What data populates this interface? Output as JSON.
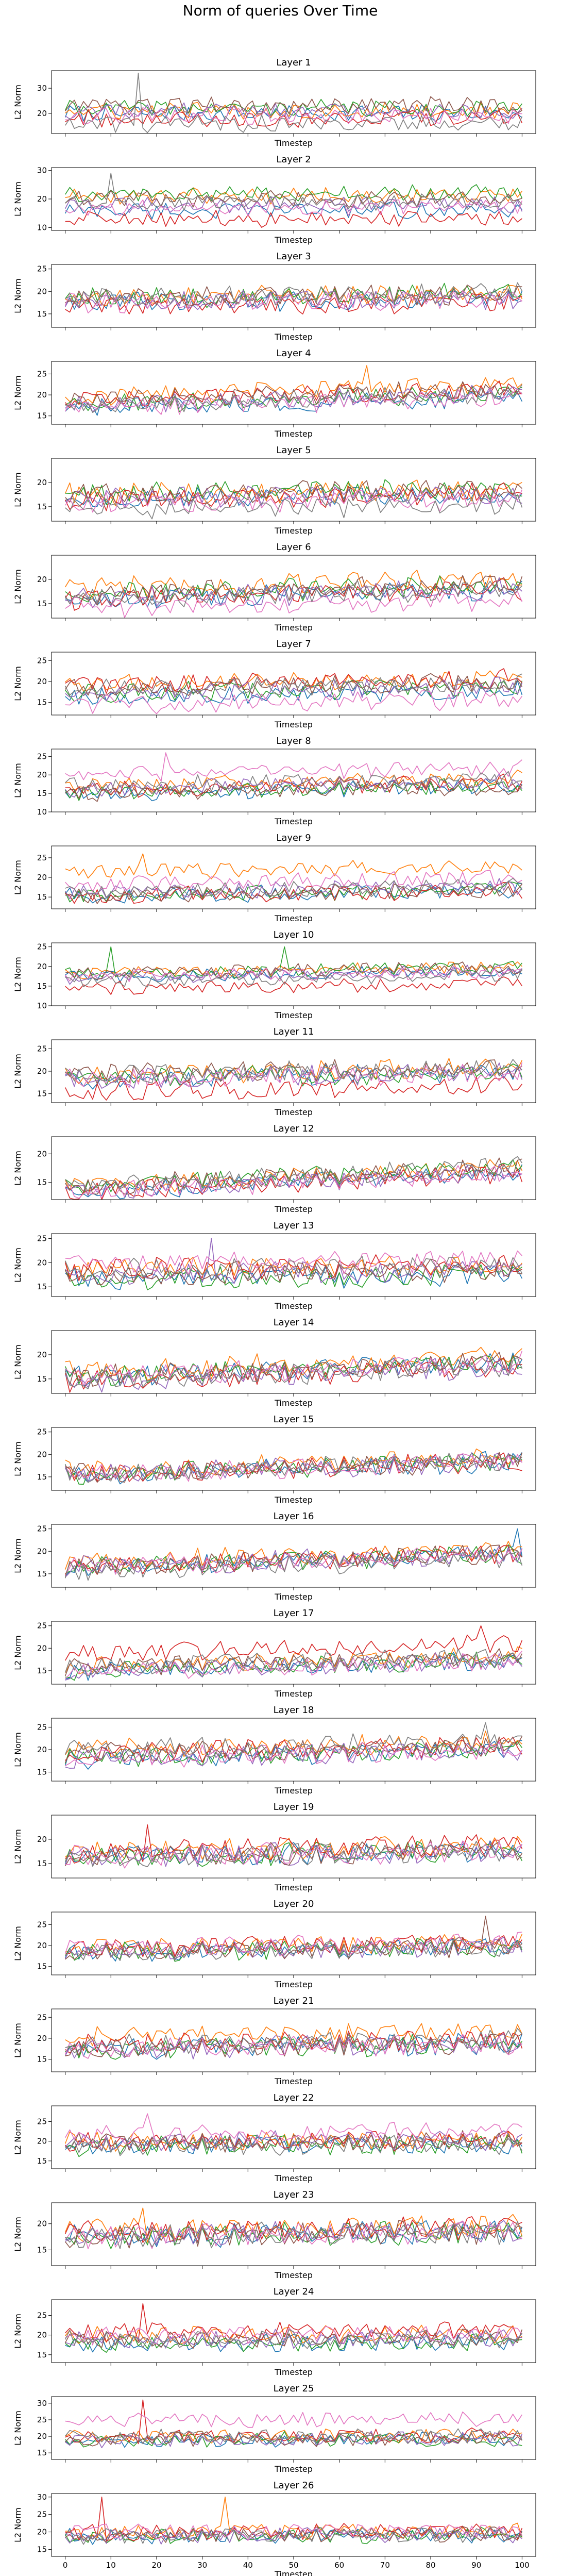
{
  "figure": {
    "suptitle": "Norm of queries Over Time",
    "ylabel": "L2 Norm",
    "xlabel": "Timestep"
  },
  "chart_data": {
    "type": "line",
    "title": "Norm of queries Over Time",
    "xlim": [
      -3,
      103
    ],
    "x_ticks": [
      0,
      10,
      20,
      30,
      40,
      50,
      60,
      70,
      80,
      90,
      100
    ],
    "series_count": 8,
    "series_colors": [
      "#1f77b4",
      "#ff7f0e",
      "#2ca02c",
      "#d62728",
      "#9467bd",
      "#8c564b",
      "#e377c2",
      "#7f7f7f"
    ],
    "note_values": "values per series are approximate, read from the figure; each line holds 101 timesteps (0–100)",
    "panels": [
      {
        "title": "Layer 1",
        "ylim": [
          12,
          37
        ],
        "yticks": [
          20,
          30
        ],
        "means": [
          20,
          21,
          22,
          18,
          21,
          23,
          19,
          16
        ],
        "amp": 3.0,
        "trend": 0.0,
        "spikes": [
          {
            "s": 7,
            "x": 16,
            "v": 36
          }
        ]
      },
      {
        "title": "Layer 2",
        "ylim": [
          9,
          31
        ],
        "yticks": [
          10,
          20,
          30
        ],
        "means": [
          16,
          21,
          22,
          13,
          18,
          20,
          17,
          19
        ],
        "amp": 2.5,
        "trend": 0.0,
        "spikes": [
          {
            "s": 7,
            "x": 10,
            "v": 29
          }
        ]
      },
      {
        "title": "Layer 3",
        "ylim": [
          12,
          26
        ],
        "yticks": [
          15,
          20,
          25
        ],
        "means": [
          18,
          19,
          19,
          17,
          18,
          19,
          18,
          19
        ],
        "amp": 2.0,
        "trend": 1.0,
        "spikes": []
      },
      {
        "title": "Layer 4",
        "ylim": [
          13,
          28
        ],
        "yticks": [
          15,
          20,
          25
        ],
        "means": [
          18,
          21,
          19,
          20,
          19,
          20,
          18,
          19
        ],
        "amp": 2.0,
        "trend": 3.0,
        "spikes": [
          {
            "s": 1,
            "x": 66,
            "v": 27
          }
        ]
      },
      {
        "title": "Layer 5",
        "ylim": [
          12,
          25
        ],
        "yticks": [
          15,
          20
        ],
        "means": [
          17,
          18,
          18,
          17,
          17,
          18,
          16,
          15
        ],
        "amp": 2.0,
        "trend": 1.0,
        "spikes": []
      },
      {
        "title": "Layer 6",
        "ylim": [
          12,
          25
        ],
        "yticks": [
          15,
          20
        ],
        "means": [
          17,
          19,
          18,
          17,
          17,
          18,
          15,
          17
        ],
        "amp": 2.0,
        "trend": 2.0,
        "spikes": []
      },
      {
        "title": "Layer 7",
        "ylim": [
          12,
          27
        ],
        "yticks": [
          15,
          20,
          25
        ],
        "means": [
          17,
          20,
          18,
          20,
          18,
          19,
          15,
          19
        ],
        "amp": 2.0,
        "trend": 1.5,
        "spikes": []
      },
      {
        "title": "Layer 8",
        "ylim": [
          10,
          27
        ],
        "yticks": [
          10,
          15,
          20,
          25
        ],
        "means": [
          16,
          18,
          16,
          17,
          17,
          16,
          21,
          18
        ],
        "amp": 2.0,
        "trend": 2.0,
        "spikes": [
          {
            "s": 6,
            "x": 22,
            "v": 26
          }
        ]
      },
      {
        "title": "Layer 9",
        "ylim": [
          12,
          28
        ],
        "yticks": [
          15,
          20,
          25
        ],
        "means": [
          16,
          22,
          16,
          16,
          17,
          16,
          19,
          17
        ],
        "amp": 1.8,
        "trend": 1.5,
        "spikes": [
          {
            "s": 1,
            "x": 17,
            "v": 26
          }
        ]
      },
      {
        "title": "Layer 10",
        "ylim": [
          10,
          26
        ],
        "yticks": [
          10,
          15,
          20,
          25
        ],
        "means": [
          18,
          19,
          19,
          15,
          18,
          19,
          18,
          17
        ],
        "amp": 1.5,
        "trend": 1.5,
        "spikes": [
          {
            "s": 2,
            "x": 10,
            "v": 25
          },
          {
            "s": 2,
            "x": 48,
            "v": 25
          }
        ]
      },
      {
        "title": "Layer 11",
        "ylim": [
          13,
          27
        ],
        "yticks": [
          15,
          20,
          25
        ],
        "means": [
          19,
          20,
          19,
          16,
          19,
          20,
          19,
          20
        ],
        "amp": 2.0,
        "trend": 1.5,
        "spikes": []
      },
      {
        "title": "Layer 12",
        "ylim": [
          12,
          23
        ],
        "yticks": [
          15,
          20
        ],
        "means": [
          15,
          16,
          16,
          15,
          15,
          16,
          15,
          16
        ],
        "amp": 1.5,
        "trend": 3.5,
        "spikes": []
      },
      {
        "title": "Layer 13",
        "ylim": [
          13,
          26
        ],
        "yticks": [
          15,
          20,
          25
        ],
        "means": [
          17,
          19,
          17,
          19,
          18,
          18,
          20,
          19
        ],
        "amp": 2.0,
        "trend": 1.0,
        "spikes": [
          {
            "s": 4,
            "x": 32,
            "v": 25
          }
        ]
      },
      {
        "title": "Layer 14",
        "ylim": [
          12,
          25
        ],
        "yticks": [
          15,
          20
        ],
        "means": [
          17,
          18,
          17,
          16,
          16,
          17,
          17,
          16
        ],
        "amp": 2.0,
        "trend": 3.0,
        "spikes": []
      },
      {
        "title": "Layer 15",
        "ylim": [
          12,
          26
        ],
        "yticks": [
          15,
          20,
          25
        ],
        "means": [
          17,
          18,
          17,
          17,
          17,
          17,
          17,
          17
        ],
        "amp": 2.0,
        "trend": 3.0,
        "spikes": []
      },
      {
        "title": "Layer 16",
        "ylim": [
          12,
          26
        ],
        "yticks": [
          15,
          20,
          25
        ],
        "means": [
          18,
          19,
          18,
          18,
          18,
          18,
          18,
          17
        ],
        "amp": 2.0,
        "trend": 3.0,
        "spikes": [
          {
            "s": 0,
            "x": 99,
            "v": 25
          }
        ]
      },
      {
        "title": "Layer 17",
        "ylim": [
          12,
          26
        ],
        "yticks": [
          15,
          20,
          25
        ],
        "means": [
          16,
          17,
          16,
          20,
          16,
          17,
          16,
          17
        ],
        "amp": 1.8,
        "trend": 2.5,
        "spikes": [
          {
            "s": 3,
            "x": 91,
            "v": 25
          }
        ]
      },
      {
        "title": "Layer 18",
        "ylim": [
          13,
          27
        ],
        "yticks": [
          15,
          20,
          25
        ],
        "means": [
          19,
          21,
          19,
          20,
          19,
          20,
          19,
          21
        ],
        "amp": 2.0,
        "trend": 2.0,
        "spikes": [
          {
            "s": 7,
            "x": 92,
            "v": 26
          }
        ]
      },
      {
        "title": "Layer 19",
        "ylim": [
          12,
          25
        ],
        "yticks": [
          15,
          20
        ],
        "means": [
          17,
          18,
          17,
          18,
          17,
          17,
          17,
          17
        ],
        "amp": 2.0,
        "trend": 1.5,
        "spikes": [
          {
            "s": 3,
            "x": 18,
            "v": 23
          }
        ]
      },
      {
        "title": "Layer 20",
        "ylim": [
          13,
          28
        ],
        "yticks": [
          15,
          20,
          25
        ],
        "means": [
          19,
          20,
          19,
          20,
          19,
          19,
          20,
          19
        ],
        "amp": 2.0,
        "trend": 1.5,
        "spikes": [
          {
            "s": 5,
            "x": 92,
            "v": 27
          }
        ]
      },
      {
        "title": "Layer 21",
        "ylim": [
          12,
          27
        ],
        "yticks": [
          15,
          20,
          25
        ],
        "means": [
          18,
          21,
          18,
          19,
          18,
          18,
          18,
          19
        ],
        "amp": 2.2,
        "trend": 1.5,
        "spikes": []
      },
      {
        "title": "Layer 22",
        "ylim": [
          13,
          29
        ],
        "yticks": [
          15,
          20,
          25
        ],
        "means": [
          19,
          20,
          19,
          20,
          20,
          20,
          22,
          19
        ],
        "amp": 2.2,
        "trend": 0.5,
        "spikes": [
          {
            "s": 6,
            "x": 18,
            "v": 27
          }
        ]
      },
      {
        "title": "Layer 23",
        "ylim": [
          12,
          24
        ],
        "yticks": [
          15,
          20
        ],
        "means": [
          18,
          19,
          18,
          19,
          18,
          18,
          18,
          18
        ],
        "amp": 2.0,
        "trend": 1.0,
        "spikes": [
          {
            "s": 1,
            "x": 17,
            "v": 23
          }
        ]
      },
      {
        "title": "Layer 24",
        "ylim": [
          13,
          29
        ],
        "yticks": [
          15,
          20,
          25
        ],
        "means": [
          18,
          20,
          18,
          21,
          19,
          19,
          20,
          19
        ],
        "amp": 2.0,
        "trend": 0.5,
        "spikes": [
          {
            "s": 3,
            "x": 17,
            "v": 28
          }
        ]
      },
      {
        "title": "Layer 25",
        "ylim": [
          13,
          32
        ],
        "yticks": [
          15,
          20,
          25,
          30
        ],
        "means": [
          19,
          20,
          19,
          20,
          19,
          19,
          25,
          20
        ],
        "amp": 2.0,
        "trend": 0.5,
        "spikes": [
          {
            "s": 3,
            "x": 17,
            "v": 31
          }
        ]
      },
      {
        "title": "Layer 26",
        "ylim": [
          13,
          31
        ],
        "yticks": [
          15,
          20,
          25,
          30
        ],
        "means": [
          19,
          20,
          19,
          20,
          19,
          19,
          20,
          19
        ],
        "amp": 2.0,
        "trend": 0.5,
        "spikes": [
          {
            "s": 3,
            "x": 8,
            "v": 30
          },
          {
            "s": 1,
            "x": 35,
            "v": 30
          }
        ]
      }
    ]
  }
}
